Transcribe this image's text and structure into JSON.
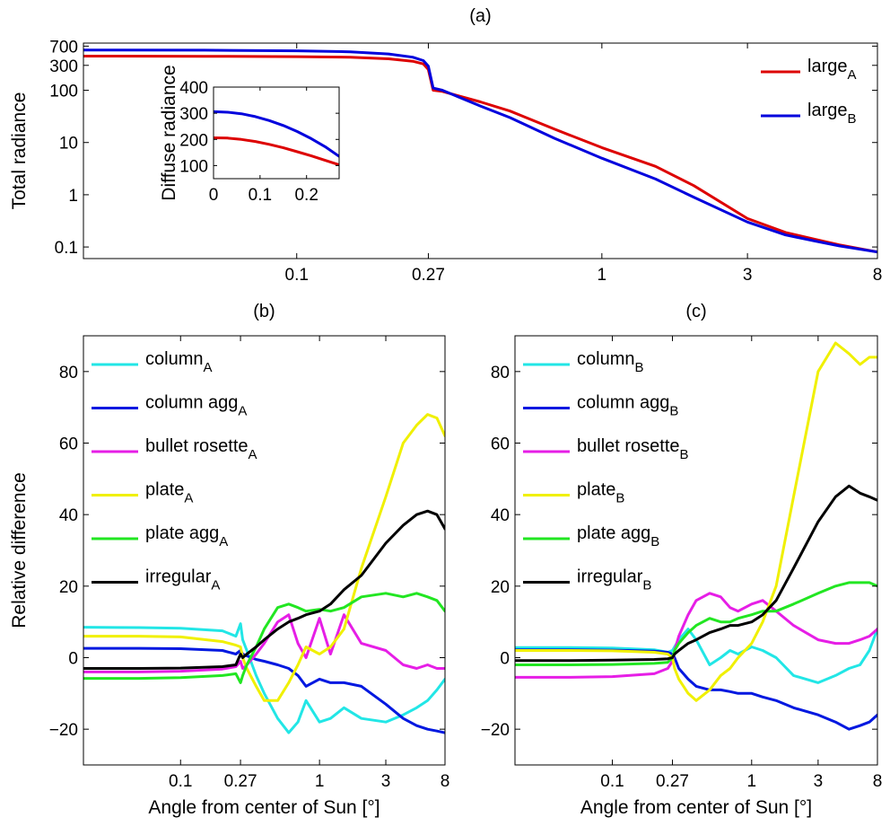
{
  "chart_data": [
    {
      "id": "a",
      "type": "line",
      "title": "(a)",
      "xlabel": "",
      "ylabel": "Total radiance",
      "xscale": "log",
      "yscale": "log",
      "xlim": [
        0.02,
        8
      ],
      "ylim": [
        0.06,
        800
      ],
      "xticks": [
        {
          "v": 0.1,
          "t": "0.1"
        },
        {
          "v": 0.27,
          "t": "0.27"
        },
        {
          "v": 1,
          "t": "1"
        },
        {
          "v": 3,
          "t": "3"
        },
        {
          "v": 8,
          "t": "8"
        }
      ],
      "yticks": [
        {
          "v": 0.1,
          "t": "0.1"
        },
        {
          "v": 1,
          "t": "1"
        },
        {
          "v": 10,
          "t": "10"
        },
        {
          "v": 100,
          "t": "100"
        },
        {
          "v": 300,
          "t": "300"
        },
        {
          "v": 700,
          "t": "700"
        }
      ],
      "legend": "top-right",
      "series": [
        {
          "name": "large",
          "sub": "A",
          "color": "#dd0000",
          "x": [
            0.02,
            0.05,
            0.1,
            0.15,
            0.2,
            0.24,
            0.26,
            0.27,
            0.28,
            0.3,
            0.4,
            0.5,
            0.7,
            1,
            1.5,
            2,
            3,
            4,
            5,
            6,
            8
          ],
          "y": [
            450,
            448,
            440,
            430,
            400,
            360,
            320,
            250,
            100,
            95,
            60,
            40,
            18,
            8,
            3.5,
            1.5,
            0.35,
            0.19,
            0.14,
            0.11,
            0.08
          ]
        },
        {
          "name": "large",
          "sub": "B",
          "color": "#0000dd",
          "x": [
            0.02,
            0.05,
            0.1,
            0.15,
            0.2,
            0.24,
            0.26,
            0.27,
            0.28,
            0.3,
            0.4,
            0.5,
            0.7,
            1,
            1.5,
            2,
            3,
            4,
            5,
            6,
            8
          ],
          "y": [
            590,
            585,
            570,
            545,
            495,
            430,
            370,
            290,
            110,
            100,
            50,
            30,
            12,
            5,
            2,
            0.9,
            0.3,
            0.17,
            0.13,
            0.105,
            0.08
          ]
        }
      ]
    },
    {
      "id": "a-inset",
      "type": "line",
      "title": "",
      "xlabel": "",
      "ylabel": "Diffuse radiance",
      "xlim": [
        0,
        0.27
      ],
      "ylim": [
        50,
        400
      ],
      "xticks": [
        {
          "v": 0,
          "t": "0"
        },
        {
          "v": 0.1,
          "t": "0.1"
        },
        {
          "v": 0.2,
          "t": "0.2"
        }
      ],
      "yticks": [
        {
          "v": 100,
          "t": "100"
        },
        {
          "v": 200,
          "t": "200"
        },
        {
          "v": 300,
          "t": "300"
        },
        {
          "v": 400,
          "t": "400"
        }
      ],
      "series": [
        {
          "color": "#dd0000",
          "x": [
            0,
            0.03,
            0.06,
            0.09,
            0.12,
            0.15,
            0.18,
            0.21,
            0.24,
            0.27
          ],
          "y": [
            206,
            205,
            200,
            192,
            181,
            168,
            153,
            137,
            120,
            103
          ]
        },
        {
          "color": "#0000dd",
          "x": [
            0,
            0.03,
            0.06,
            0.09,
            0.12,
            0.15,
            0.18,
            0.21,
            0.24,
            0.27
          ],
          "y": [
            306,
            304,
            298,
            287,
            272,
            253,
            230,
            203,
            172,
            135
          ]
        }
      ]
    },
    {
      "id": "b",
      "type": "line",
      "title": "(b)",
      "xlabel": "Angle from center of Sun [°]",
      "ylabel": "Relative difference",
      "xscale": "log",
      "xlim": [
        0.02,
        8
      ],
      "ylim": [
        -30,
        90
      ],
      "xticks": [
        {
          "v": 0.1,
          "t": "0.1"
        },
        {
          "v": 0.27,
          "t": "0.27"
        },
        {
          "v": 1,
          "t": "1"
        },
        {
          "v": 3,
          "t": "3"
        },
        {
          "v": 8,
          "t": "8"
        }
      ],
      "yticks": [
        {
          "v": -20,
          "t": "−20"
        },
        {
          "v": 0,
          "t": "0"
        },
        {
          "v": 20,
          "t": "20"
        },
        {
          "v": 40,
          "t": "40"
        },
        {
          "v": 60,
          "t": "60"
        },
        {
          "v": 80,
          "t": "80"
        }
      ],
      "legend": "top-left",
      "series": [
        {
          "name": "column",
          "sub": "A",
          "color": "#22e6e6",
          "x": [
            0.02,
            0.05,
            0.1,
            0.2,
            0.25,
            0.27,
            0.28,
            0.3,
            0.35,
            0.4,
            0.5,
            0.6,
            0.7,
            0.8,
            1,
            1.2,
            1.5,
            2,
            3,
            4,
            5,
            6,
            7,
            8
          ],
          "y": [
            8.5,
            8.4,
            8.2,
            7.5,
            6,
            9.5,
            5,
            2,
            -5,
            -10,
            -17,
            -21,
            -18,
            -12,
            -18,
            -17,
            -14,
            -17,
            -18,
            -16,
            -14,
            -12,
            -9,
            -6
          ]
        },
        {
          "name": "column agg",
          "sub": "A",
          "color": "#0018e0",
          "x": [
            0.02,
            0.05,
            0.1,
            0.2,
            0.25,
            0.27,
            0.28,
            0.3,
            0.35,
            0.4,
            0.5,
            0.6,
            0.7,
            0.8,
            1,
            1.2,
            1.5,
            2,
            3,
            4,
            5,
            6,
            7,
            8
          ],
          "y": [
            2.6,
            2.6,
            2.5,
            2,
            1,
            2,
            1,
            0.5,
            -0.5,
            -1,
            -2,
            -3,
            -5,
            -8,
            -6,
            -7,
            -7,
            -8,
            -13,
            -17,
            -19,
            -20,
            -20.5,
            -21
          ]
        },
        {
          "name": "bullet rosette",
          "sub": "A",
          "color": "#e61ee6",
          "x": [
            0.02,
            0.05,
            0.1,
            0.2,
            0.25,
            0.27,
            0.28,
            0.3,
            0.35,
            0.4,
            0.5,
            0.6,
            0.7,
            0.8,
            1,
            1.2,
            1.5,
            2,
            3,
            4,
            5,
            6,
            7,
            8
          ],
          "y": [
            -4,
            -4,
            -3.8,
            -3.2,
            -2.5,
            -1,
            -3,
            -2,
            1,
            4,
            10,
            12,
            4,
            0,
            11,
            1,
            12,
            4,
            2,
            -2,
            -3,
            -2,
            -3,
            -3
          ]
        },
        {
          "name": "plate",
          "sub": "A",
          "color": "#f0f000",
          "x": [
            0.02,
            0.05,
            0.1,
            0.2,
            0.25,
            0.27,
            0.28,
            0.3,
            0.35,
            0.4,
            0.5,
            0.6,
            0.7,
            0.8,
            1,
            1.2,
            1.5,
            2,
            3,
            4,
            5,
            6,
            7,
            8
          ],
          "y": [
            6,
            6,
            5.8,
            4.5,
            3.5,
            3,
            0,
            -3,
            -8,
            -12,
            -12,
            -7,
            -2,
            3,
            1,
            3,
            8,
            25,
            45,
            60,
            65,
            68,
            67,
            62
          ]
        },
        {
          "name": "plate agg",
          "sub": "A",
          "color": "#22e622",
          "x": [
            0.02,
            0.05,
            0.1,
            0.2,
            0.25,
            0.27,
            0.28,
            0.3,
            0.35,
            0.4,
            0.5,
            0.6,
            0.7,
            0.8,
            1,
            1.2,
            1.5,
            2,
            3,
            4,
            5,
            6,
            7,
            8
          ],
          "y": [
            -5.8,
            -5.8,
            -5.6,
            -5,
            -4.5,
            -7,
            -5,
            -2,
            3,
            8,
            14,
            15,
            14,
            13,
            13.5,
            13,
            14,
            17,
            18,
            17,
            18,
            17,
            16,
            13
          ]
        },
        {
          "name": "irregular",
          "sub": "A",
          "color": "#000000",
          "x": [
            0.02,
            0.05,
            0.1,
            0.2,
            0.25,
            0.27,
            0.28,
            0.3,
            0.35,
            0.4,
            0.5,
            0.6,
            0.7,
            0.8,
            1,
            1.2,
            1.5,
            2,
            3,
            4,
            5,
            6,
            7,
            8
          ],
          "y": [
            -3,
            -3,
            -2.9,
            -2.5,
            -2,
            1,
            0,
            1,
            3,
            5,
            8,
            10,
            11,
            12,
            13,
            15,
            19,
            23,
            32,
            37,
            40,
            41,
            40,
            36
          ]
        }
      ]
    },
    {
      "id": "c",
      "type": "line",
      "title": "(c)",
      "xlabel": "Angle from center of Sun [°]",
      "ylabel": "",
      "xscale": "log",
      "xlim": [
        0.02,
        8
      ],
      "ylim": [
        -30,
        90
      ],
      "xticks": [
        {
          "v": 0.1,
          "t": "0.1"
        },
        {
          "v": 0.27,
          "t": "0.27"
        },
        {
          "v": 1,
          "t": "1"
        },
        {
          "v": 3,
          "t": "3"
        },
        {
          "v": 8,
          "t": "8"
        }
      ],
      "yticks": [
        {
          "v": -20,
          "t": "−20"
        },
        {
          "v": 0,
          "t": "0"
        },
        {
          "v": 20,
          "t": "20"
        },
        {
          "v": 40,
          "t": "40"
        },
        {
          "v": 60,
          "t": "60"
        },
        {
          "v": 80,
          "t": "80"
        }
      ],
      "legend": "top-left",
      "series": [
        {
          "name": "column",
          "sub": "B",
          "color": "#22e6e6",
          "x": [
            0.02,
            0.05,
            0.1,
            0.2,
            0.25,
            0.27,
            0.28,
            0.3,
            0.35,
            0.4,
            0.5,
            0.6,
            0.7,
            0.8,
            1,
            1.2,
            1.5,
            2,
            3,
            4,
            5,
            6,
            7,
            8
          ],
          "y": [
            2.8,
            2.8,
            2.7,
            2.2,
            1.5,
            2,
            3,
            5,
            8,
            5,
            -2,
            0,
            2,
            1,
            3,
            2,
            0,
            -5,
            -7,
            -5,
            -3,
            -2,
            2,
            8
          ]
        },
        {
          "name": "column agg",
          "sub": "B",
          "color": "#0018e0",
          "x": [
            0.02,
            0.05,
            0.1,
            0.2,
            0.25,
            0.27,
            0.28,
            0.3,
            0.35,
            0.4,
            0.5,
            0.6,
            0.7,
            0.8,
            1,
            1.2,
            1.5,
            2,
            3,
            4,
            5,
            6,
            7,
            8
          ],
          "y": [
            2.2,
            2.2,
            2.1,
            1.8,
            1.5,
            1,
            0,
            -3,
            -6,
            -8,
            -9,
            -9,
            -9.5,
            -10,
            -10,
            -11,
            -12,
            -14,
            -16,
            -18,
            -20,
            -19,
            -18,
            -16
          ]
        },
        {
          "name": "bullet rosette",
          "sub": "B",
          "color": "#e61ee6",
          "x": [
            0.02,
            0.05,
            0.1,
            0.2,
            0.25,
            0.27,
            0.28,
            0.3,
            0.35,
            0.4,
            0.5,
            0.6,
            0.7,
            0.8,
            1,
            1.2,
            1.5,
            2,
            3,
            4,
            5,
            6,
            7,
            8
          ],
          "y": [
            -5.5,
            -5.5,
            -5.3,
            -4.5,
            -3,
            -1,
            2,
            6,
            12,
            16,
            18,
            17,
            14,
            13,
            15,
            16,
            13,
            9,
            5,
            4,
            4,
            5,
            6,
            8
          ]
        },
        {
          "name": "plate",
          "sub": "B",
          "color": "#f0f000",
          "x": [
            0.02,
            0.05,
            0.1,
            0.2,
            0.25,
            0.27,
            0.28,
            0.3,
            0.35,
            0.4,
            0.5,
            0.6,
            0.7,
            0.8,
            1,
            1.2,
            1.5,
            2,
            3,
            4,
            5,
            6,
            7,
            8
          ],
          "y": [
            2,
            2,
            1.9,
            1.5,
            1,
            0,
            -3,
            -6,
            -10,
            -12,
            -9,
            -5,
            -3,
            0,
            4,
            10,
            20,
            45,
            80,
            88,
            85,
            82,
            84,
            84
          ]
        },
        {
          "name": "plate agg",
          "sub": "B",
          "color": "#22e622",
          "x": [
            0.02,
            0.05,
            0.1,
            0.2,
            0.25,
            0.27,
            0.28,
            0.3,
            0.35,
            0.4,
            0.5,
            0.6,
            0.7,
            0.8,
            1,
            1.2,
            1.5,
            2,
            3,
            4,
            5,
            6,
            7,
            8
          ],
          "y": [
            -2,
            -2,
            -1.9,
            -1.6,
            -1.3,
            0,
            2,
            4,
            7,
            9,
            11,
            10,
            10,
            11,
            12,
            13,
            13,
            15,
            18,
            20,
            21,
            21,
            21,
            20
          ]
        },
        {
          "name": "irregular",
          "sub": "B",
          "color": "#000000",
          "x": [
            0.02,
            0.05,
            0.1,
            0.2,
            0.25,
            0.27,
            0.28,
            0.3,
            0.35,
            0.4,
            0.5,
            0.6,
            0.7,
            0.8,
            1,
            1.2,
            1.5,
            2,
            3,
            4,
            5,
            6,
            7,
            8
          ],
          "y": [
            -0.8,
            -0.8,
            -0.7,
            -0.5,
            -0.3,
            0,
            1,
            2,
            4,
            5,
            7,
            8,
            9,
            9,
            10,
            12,
            16,
            25,
            38,
            45,
            48,
            46,
            45,
            44
          ]
        }
      ]
    }
  ]
}
